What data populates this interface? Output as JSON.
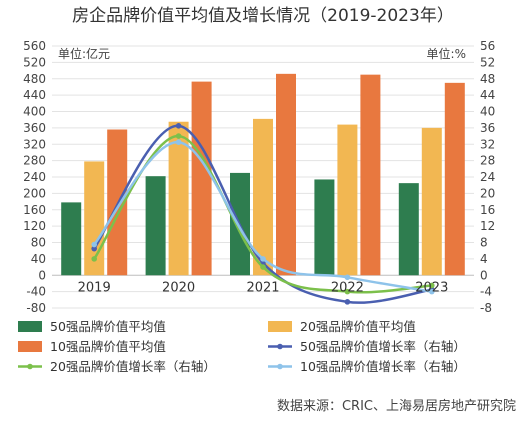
{
  "chart_data": {
    "type": "bar",
    "title": "房企品牌价值平均值及增长情况（2019-2023年）",
    "left_unit": "单位:亿元",
    "right_unit": "单位:%",
    "categories": [
      "2019",
      "2020",
      "2021",
      "2022",
      "2023"
    ],
    "y_left": {
      "min": -80,
      "max": 560,
      "step": 40,
      "ticks": [
        "560",
        "520",
        "480",
        "440",
        "400",
        "360",
        "320",
        "280",
        "240",
        "200",
        "160",
        "120",
        "80",
        "40",
        "0",
        "-40",
        "-80"
      ]
    },
    "y_right": {
      "min": -8,
      "max": 56,
      "step": 4,
      "ticks": [
        "56",
        "52",
        "48",
        "44",
        "40",
        "36",
        "32",
        "28",
        "24",
        "20",
        "16",
        "12",
        "8",
        "4",
        "0",
        "-4",
        "-8"
      ]
    },
    "bar_series": [
      {
        "name": "50强品牌价值平均值",
        "color": "#2e7d4f",
        "values": [
          178,
          242,
          250,
          234,
          225
        ]
      },
      {
        "name": "20强品牌价值平均值",
        "color": "#f2b752",
        "values": [
          278,
          375,
          382,
          368,
          360
        ]
      },
      {
        "name": "10强品牌价值平均值",
        "color": "#e8783f",
        "values": [
          356,
          473,
          492,
          490,
          470
        ]
      }
    ],
    "line_series": [
      {
        "name": "50强品牌价值增长率（右轴）",
        "color": "#4a5fb0",
        "values": [
          6.5,
          36.5,
          3.0,
          -6.5,
          -3.5
        ]
      },
      {
        "name": "20强品牌价值增长率（右轴）",
        "color": "#7cc04b",
        "values": [
          4.0,
          34.0,
          2.0,
          -4.0,
          -2.5
        ]
      },
      {
        "name": "10强品牌价值增长率（右轴）",
        "color": "#8ec3ea",
        "values": [
          7.5,
          32.5,
          4.0,
          -0.5,
          -4.0
        ]
      }
    ],
    "source": "数据来源：CRIC、上海易居房地产研究院"
  }
}
